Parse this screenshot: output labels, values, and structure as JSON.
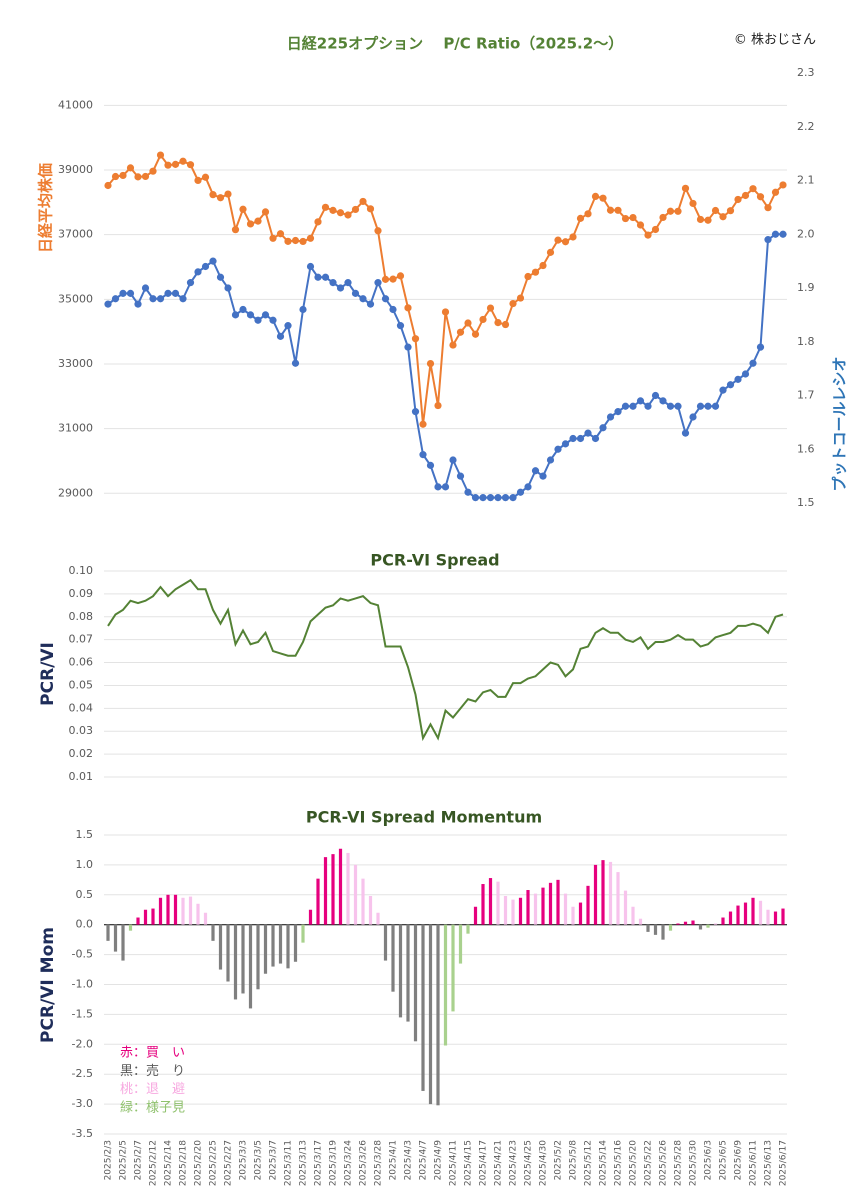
{
  "chart_data": [
    {
      "type": "line",
      "title": "日経225オプション　 P/C Ratio（2025.2～）",
      "credit": "© 株おじさん",
      "ylabel": "日経平均株価",
      "y2label": "プットコールレシオ",
      "markers": true,
      "grid": true,
      "ylim": [
        28700,
        42000
      ],
      "yticks": [
        29000,
        31000,
        33000,
        35000,
        37000,
        39000,
        41000
      ],
      "y2lim": [
        1.5,
        2.3
      ],
      "y2ticks": [
        1.5,
        1.6,
        1.7,
        1.8,
        1.9,
        {
          "value": 2,
          "label": "2.0"
        },
        2.1,
        2.2,
        2.3
      ],
      "series": [
        {
          "color": "#ed7d31",
          "values": [
            38520,
            38798,
            38831,
            39066,
            38787,
            38801,
            38963,
            39462,
            39149,
            39174,
            39270,
            39164,
            38678,
            38776,
            38237,
            38142,
            38256,
            37155,
            37785,
            37331,
            37418,
            37704,
            36887,
            37028,
            36793,
            36819,
            36790,
            36887,
            37396,
            37845,
            37751,
            37677,
            37608,
            37780,
            38027,
            37799,
            37120,
            35617,
            35624,
            35725,
            34736,
            33781,
            31136,
            33012,
            31714,
            34609,
            33585,
            33982,
            34267,
            33920,
            34377,
            34730,
            34280,
            34220,
            34868,
            35039,
            35705,
            35839,
            36045,
            36452,
            36831,
            36780,
            36928,
            37503,
            37644,
            38183,
            38128,
            37755,
            37753,
            37498,
            37529,
            37299,
            36986,
            37160,
            37532,
            37724,
            37722,
            38432,
            37965,
            37470,
            37446,
            37747,
            37554,
            37741,
            38088,
            38211,
            38421,
            38173,
            37834,
            38311,
            38537
          ]
        },
        {
          "color": "#4472c4",
          "axis": "y2",
          "values": [
            1.87,
            1.88,
            1.89,
            1.89,
            1.87,
            1.9,
            1.88,
            1.88,
            1.89,
            1.89,
            1.88,
            1.91,
            1.93,
            1.94,
            1.95,
            1.92,
            1.9,
            1.85,
            1.86,
            1.85,
            1.84,
            1.85,
            1.84,
            1.81,
            1.83,
            1.76,
            1.86,
            1.94,
            1.92,
            1.92,
            1.91,
            1.9,
            1.91,
            1.89,
            1.88,
            1.87,
            1.91,
            1.88,
            1.86,
            1.83,
            1.79,
            1.67,
            1.59,
            1.57,
            1.53,
            1.53,
            1.58,
            1.55,
            1.52,
            1.51,
            1.51,
            1.51,
            1.51,
            1.51,
            1.51,
            1.52,
            1.53,
            1.56,
            1.55,
            1.58,
            1.6,
            1.61,
            1.62,
            1.62,
            1.63,
            1.62,
            1.64,
            1.66,
            1.67,
            1.68,
            1.68,
            1.69,
            1.68,
            1.7,
            1.69,
            1.68,
            1.68,
            1.63,
            1.66,
            1.68,
            1.68,
            1.68,
            1.71,
            1.72,
            1.73,
            1.74,
            1.76,
            1.79,
            1.99,
            2.0,
            2.0
          ]
        }
      ]
    },
    {
      "type": "line",
      "title": "PCR-VI Spread",
      "ylabel": "PCR/VI",
      "grid": true,
      "ylim": [
        0.01,
        0.1
      ],
      "yticks": [
        0.01,
        0.02,
        0.03,
        0.04,
        0.05,
        0.06,
        0.07,
        0.08,
        0.09,
        {
          "value": 0.1,
          "label": "0.10"
        }
      ],
      "series": [
        {
          "color": "#548235",
          "values": [
            0.076,
            0.081,
            0.083,
            0.087,
            0.086,
            0.087,
            0.089,
            0.093,
            0.089,
            0.092,
            0.094,
            0.096,
            0.092,
            0.092,
            0.083,
            0.077,
            0.083,
            0.068,
            0.074,
            0.068,
            0.069,
            0.073,
            0.065,
            0.064,
            0.063,
            0.063,
            0.069,
            0.078,
            0.081,
            0.084,
            0.085,
            0.088,
            0.087,
            0.088,
            0.089,
            0.086,
            0.085,
            0.067,
            0.067,
            0.067,
            0.058,
            0.046,
            0.027,
            0.033,
            0.027,
            0.039,
            0.036,
            0.04,
            0.044,
            0.043,
            0.047,
            0.048,
            0.045,
            0.045,
            0.051,
            0.051,
            0.053,
            0.054,
            0.057,
            0.06,
            0.059,
            0.054,
            0.057,
            0.066,
            0.067,
            0.073,
            0.075,
            0.073,
            0.073,
            0.07,
            0.069,
            0.071,
            0.066,
            0.069,
            0.069,
            0.07,
            0.072,
            0.07,
            0.07,
            0.067,
            0.068,
            0.071,
            0.072,
            0.073,
            0.076,
            0.076,
            0.077,
            0.076,
            0.073,
            0.08,
            0.081
          ]
        }
      ]
    },
    {
      "type": "bar",
      "title": "PCR-VI Spread Momentum",
      "ylabel": "PCR/VI Mom",
      "grid": true,
      "ylim": [
        -3.5,
        1.5
      ],
      "yticks": [
        -3.5,
        {
          "value": -3,
          "label": "-3.0"
        },
        -2.5,
        {
          "value": -2,
          "label": "-2.0"
        },
        -1.5,
        {
          "value": -1,
          "label": "-1.0"
        },
        -0.5,
        {
          "value": 0,
          "label": "0.0"
        },
        0.5,
        {
          "value": 1,
          "label": "1.0"
        },
        1.5
      ],
      "categories": [
        "2025/2/3",
        null,
        "2025/2/5",
        null,
        "2025/2/7",
        null,
        "2025/2/12",
        null,
        "2025/2/14",
        null,
        "2025/2/18",
        null,
        "2025/2/20",
        null,
        "2025/2/25",
        null,
        "2025/2/27",
        null,
        "2025/3/3",
        null,
        "2025/3/5",
        null,
        "2025/3/7",
        null,
        "2025/3/11",
        null,
        "2025/3/13",
        null,
        "2025/3/17",
        null,
        "2025/3/19",
        null,
        "2025/3/24",
        null,
        "2025/3/26",
        null,
        "2025/3/28",
        null,
        "2025/4/1",
        null,
        "2025/4/3",
        null,
        "2025/4/7",
        null,
        "2025/4/9",
        null,
        "2025/4/11",
        null,
        "2025/4/15",
        null,
        "2025/4/17",
        null,
        "2025/4/21",
        null,
        "2025/4/23",
        null,
        "2025/4/25",
        null,
        "2025/4/30",
        null,
        "2025/5/2",
        null,
        "2025/5/8",
        null,
        "2025/5/12",
        null,
        "2025/5/14",
        null,
        "2025/5/16",
        null,
        "2025/5/20",
        null,
        "2025/5/22",
        null,
        "2025/5/26",
        null,
        "2025/5/28",
        null,
        "2025/5/30",
        null,
        "2025/6/3",
        null,
        "2025/6/5",
        null,
        "2025/6/9",
        null,
        "2025/6/11",
        null,
        "2025/6/13",
        null,
        "2025/6/17"
      ],
      "values": [
        -0.27,
        -0.45,
        -0.6,
        -0.1,
        0.12,
        0.25,
        0.27,
        0.45,
        0.5,
        0.5,
        0.45,
        0.47,
        0.35,
        0.2,
        -0.27,
        -0.75,
        -0.95,
        -1.25,
        -1.15,
        -1.4,
        -1.08,
        -0.82,
        -0.7,
        -0.65,
        -0.73,
        -0.62,
        -0.3,
        0.25,
        0.77,
        1.13,
        1.18,
        1.27,
        1.2,
        1.0,
        0.77,
        0.48,
        0.2,
        -0.6,
        -1.12,
        -1.55,
        -1.62,
        -1.95,
        -2.78,
        -3.0,
        -3.02,
        -2.02,
        -1.45,
        -0.65,
        -0.15,
        0.3,
        0.68,
        0.78,
        0.72,
        0.48,
        0.42,
        0.45,
        0.58,
        0.52,
        0.62,
        0.7,
        0.75,
        0.52,
        0.3,
        0.37,
        0.65,
        1.0,
        1.08,
        1.05,
        0.88,
        0.57,
        0.3,
        0.1,
        -0.12,
        -0.17,
        -0.25,
        -0.1,
        0.02,
        0.05,
        0.07,
        -0.08,
        -0.05,
        0.02,
        0.12,
        0.22,
        0.32,
        0.37,
        0.45,
        0.4,
        0.25,
        0.22,
        0.27
      ],
      "colors": [
        "#7f7f7f",
        "#7f7f7f",
        "#7f7f7f",
        "#a9d18e",
        "#e6007e",
        "#e6007e",
        "#e6007e",
        "#e6007e",
        "#e6007e",
        "#e6007e",
        "#f7c3ec",
        "#f7c3ec",
        "#f7c3ec",
        "#f7c3ec",
        "#7f7f7f",
        "#7f7f7f",
        "#7f7f7f",
        "#7f7f7f",
        "#7f7f7f",
        "#7f7f7f",
        "#7f7f7f",
        "#7f7f7f",
        "#7f7f7f",
        "#7f7f7f",
        "#7f7f7f",
        "#7f7f7f",
        "#a9d18e",
        "#e6007e",
        "#e6007e",
        "#e6007e",
        "#e6007e",
        "#e6007e",
        "#f7c3ec",
        "#f7c3ec",
        "#f7c3ec",
        "#f7c3ec",
        "#f7c3ec",
        "#7f7f7f",
        "#7f7f7f",
        "#7f7f7f",
        "#7f7f7f",
        "#7f7f7f",
        "#7f7f7f",
        "#7f7f7f",
        "#7f7f7f",
        "#a9d18e",
        "#a9d18e",
        "#a9d18e",
        "#a9d18e",
        "#e6007e",
        "#e6007e",
        "#e6007e",
        "#f7c3ec",
        "#f7c3ec",
        "#f7c3ec",
        "#e6007e",
        "#e6007e",
        "#f7c3ec",
        "#e6007e",
        "#e6007e",
        "#e6007e",
        "#f7c3ec",
        "#f7c3ec",
        "#e6007e",
        "#e6007e",
        "#e6007e",
        "#e6007e",
        "#f7c3ec",
        "#f7c3ec",
        "#f7c3ec",
        "#f7c3ec",
        "#f7c3ec",
        "#7f7f7f",
        "#7f7f7f",
        "#7f7f7f",
        "#a9d18e",
        "#e6007e",
        "#e6007e",
        "#e6007e",
        "#7f7f7f",
        "#a9d18e",
        "#f7c3ec",
        "#e6007e",
        "#e6007e",
        "#e6007e",
        "#e6007e",
        "#e6007e",
        "#f7c3ec",
        "#f7c3ec",
        "#e6007e",
        "#e6007e"
      ],
      "legend": [
        {
          "label": "赤：買　い",
          "color": "#e6007e"
        },
        {
          "label": "黒：売　り",
          "color": "#595959"
        },
        {
          "label": "桃：退　避",
          "color": "#f7a8e0"
        },
        {
          "label": "緑：様子見",
          "color": "#8fc16d"
        }
      ]
    }
  ]
}
